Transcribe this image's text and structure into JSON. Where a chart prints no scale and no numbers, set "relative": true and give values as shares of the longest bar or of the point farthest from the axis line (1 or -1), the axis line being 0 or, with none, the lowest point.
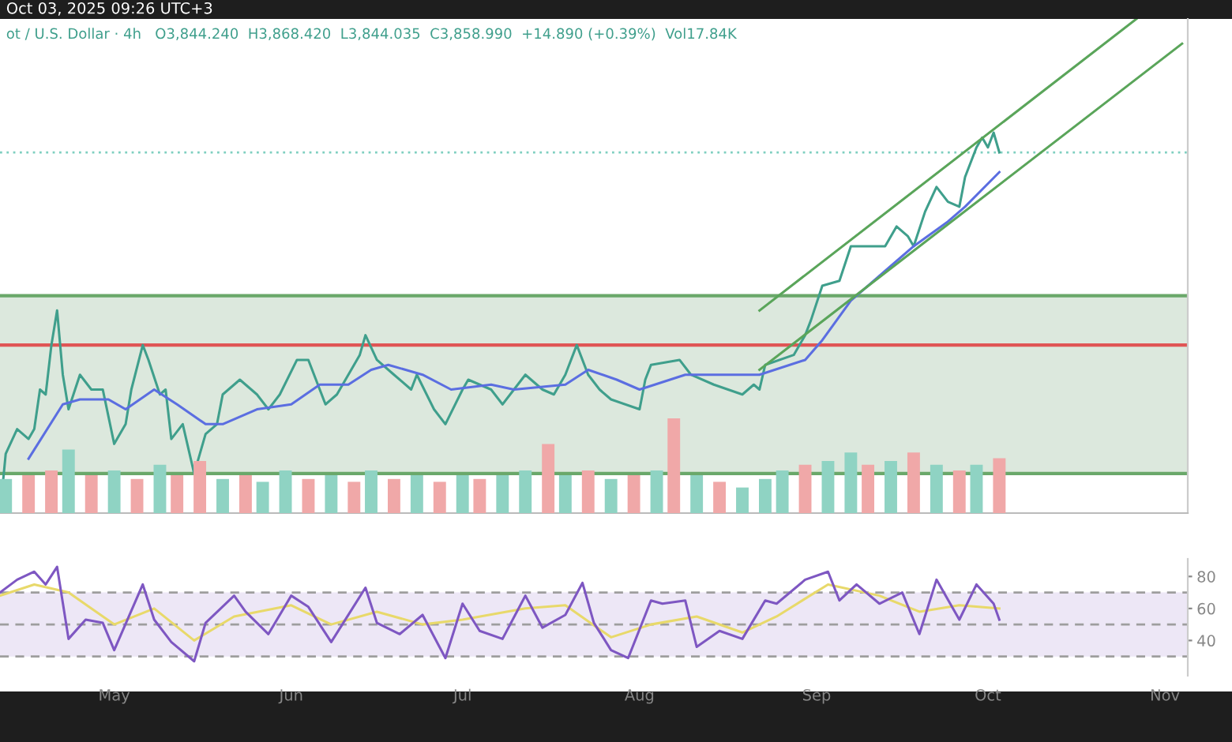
{
  "chart_data": [
    {
      "type": "line",
      "relative": true,
      "title": "Oct 03, 2025 09:26 UTC+3",
      "subtitle": "ot / U.S. Dollar · 4h   O3,844.240  H3,868.420  L3,844.035  C3,858.990  +14.890 (+0.39%)  Vol17.84K",
      "xlim": [
        "2025-04-11",
        "2025-11-05"
      ],
      "series": [
        {
          "color": "#3f9f8c",
          "x": [
            "2025-04-11",
            "2025-04-12",
            "2025-04-14",
            "2025-04-16",
            "2025-04-17",
            "2025-04-18",
            "2025-04-19",
            "2025-04-20",
            "2025-04-21",
            "2025-04-22",
            "2025-04-23",
            "2025-04-25",
            "2025-04-27",
            "2025-04-29",
            "2025-05-01",
            "2025-05-03",
            "2025-05-04",
            "2025-05-06",
            "2025-05-07",
            "2025-05-09",
            "2025-05-10",
            "2025-05-11",
            "2025-05-13",
            "2025-05-15",
            "2025-05-16",
            "2025-05-17",
            "2025-05-19",
            "2025-05-20",
            "2025-05-23",
            "2025-05-26",
            "2025-05-28",
            "2025-05-30",
            "2025-06-02",
            "2025-06-04",
            "2025-06-07",
            "2025-06-09",
            "2025-06-13",
            "2025-06-14",
            "2025-06-16",
            "2025-06-19",
            "2025-06-22",
            "2025-06-23",
            "2025-06-26",
            "2025-06-28",
            "2025-07-01",
            "2025-07-02",
            "2025-07-06",
            "2025-07-08",
            "2025-07-10",
            "2025-07-12",
            "2025-07-15",
            "2025-07-17",
            "2025-07-19",
            "2025-07-21",
            "2025-07-23",
            "2025-07-25",
            "2025-07-27",
            "2025-08-01",
            "2025-08-02",
            "2025-08-03",
            "2025-08-08",
            "2025-08-10",
            "2025-08-14",
            "2025-08-19",
            "2025-08-21",
            "2025-08-22",
            "2025-08-23",
            "2025-08-28",
            "2025-08-30",
            "2025-08-31",
            "2025-09-02",
            "2025-09-05",
            "2025-09-07",
            "2025-09-10",
            "2025-09-13",
            "2025-09-15",
            "2025-09-17",
            "2025-09-18",
            "2025-09-20",
            "2025-09-22",
            "2025-09-24",
            "2025-09-26",
            "2025-09-27",
            "2025-09-29",
            "2025-09-30",
            "2025-10-01",
            "2025-10-02",
            "2025-10-03"
          ],
          "values": [
            0,
            0.12,
            0.17,
            0.15,
            0.17,
            0.25,
            0.24,
            0.34,
            0.41,
            0.28,
            0.21,
            0.28,
            0.25,
            0.25,
            0.14,
            0.18,
            0.25,
            0.34,
            0.31,
            0.24,
            0.25,
            0.15,
            0.18,
            0.08,
            0.12,
            0.16,
            0.18,
            0.24,
            0.27,
            0.24,
            0.21,
            0.24,
            0.31,
            0.31,
            0.22,
            0.24,
            0.32,
            0.36,
            0.31,
            0.28,
            0.25,
            0.28,
            0.21,
            0.18,
            0.25,
            0.27,
            0.25,
            0.22,
            0.25,
            0.28,
            0.25,
            0.24,
            0.28,
            0.34,
            0.28,
            0.25,
            0.23,
            0.21,
            0.27,
            0.3,
            0.31,
            0.28,
            0.26,
            0.24,
            0.26,
            0.25,
            0.3,
            0.32,
            0.36,
            0.39,
            0.46,
            0.47,
            0.54,
            0.54,
            0.54,
            0.58,
            0.56,
            0.54,
            0.61,
            0.66,
            0.63,
            0.62,
            0.68,
            0.74,
            0.76,
            0.74,
            0.77,
            0.73
          ]
        },
        {
          "color": "#5b6ee1",
          "x": [
            "2025-04-16",
            "2025-04-22",
            "2025-04-25",
            "2025-04-30",
            "2025-05-03",
            "2025-05-08",
            "2025-05-12",
            "2025-05-17",
            "2025-05-20",
            "2025-05-26",
            "2025-06-01",
            "2025-06-06",
            "2025-06-11",
            "2025-06-15",
            "2025-06-18",
            "2025-06-24",
            "2025-06-29",
            "2025-07-06",
            "2025-07-10",
            "2025-07-19",
            "2025-07-23",
            "2025-07-28",
            "2025-08-01",
            "2025-08-09",
            "2025-08-22",
            "2025-08-30",
            "2025-09-02",
            "2025-09-07",
            "2025-09-13",
            "2025-09-18",
            "2025-09-24",
            "2025-09-27",
            "2025-10-03"
          ],
          "values": [
            0.11,
            0.22,
            0.23,
            0.23,
            0.21,
            0.25,
            0.22,
            0.18,
            0.18,
            0.21,
            0.22,
            0.26,
            0.26,
            0.29,
            0.3,
            0.28,
            0.25,
            0.26,
            0.25,
            0.26,
            0.29,
            0.27,
            0.25,
            0.28,
            0.28,
            0.31,
            0.35,
            0.43,
            0.49,
            0.54,
            0.59,
            0.62,
            0.69
          ]
        },
        {
          "color": "#5aa55a",
          "x": [
            "2025-08-22",
            "2025-10-27"
          ],
          "values": [
            0.41,
            1.0
          ]
        },
        {
          "color": "#5aa55a",
          "x": [
            "2025-08-22",
            "2025-11-04"
          ],
          "values": [
            0.29,
            0.95
          ]
        }
      ],
      "bands": [
        {
          "axis": "y",
          "from": 0.08,
          "to": 0.44,
          "color": "#dce8dd"
        }
      ],
      "ref_lines": [
        {
          "axis": "y",
          "value": 0.08,
          "color": "#6aa86a",
          "line_style": "solid"
        },
        {
          "axis": "y",
          "value": 0.44,
          "color": "#6aa86a",
          "line_style": "solid"
        },
        {
          "axis": "y",
          "value": 0.34,
          "color": "#e05555",
          "line_style": "solid"
        },
        {
          "axis": "y",
          "value": 0.73,
          "color": "#7fcfc0",
          "line_style": "dotted"
        }
      ]
    },
    {
      "type": "bar",
      "relative": true,
      "xlim": [
        "2025-04-11",
        "2025-11-05"
      ],
      "x": [
        "2025-04-12",
        "2025-04-16",
        "2025-04-20",
        "2025-04-23",
        "2025-04-27",
        "2025-05-01",
        "2025-05-05",
        "2025-05-09",
        "2025-05-12",
        "2025-05-16",
        "2025-05-20",
        "2025-05-24",
        "2025-05-27",
        "2025-05-31",
        "2025-06-04",
        "2025-06-08",
        "2025-06-12",
        "2025-06-15",
        "2025-06-19",
        "2025-06-23",
        "2025-06-27",
        "2025-07-01",
        "2025-07-04",
        "2025-07-08",
        "2025-07-12",
        "2025-07-16",
        "2025-07-19",
        "2025-07-23",
        "2025-07-27",
        "2025-07-31",
        "2025-08-04",
        "2025-08-07",
        "2025-08-11",
        "2025-08-15",
        "2025-08-19",
        "2025-08-23",
        "2025-08-26",
        "2025-08-30",
        "2025-09-03",
        "2025-09-07",
        "2025-09-10",
        "2025-09-14",
        "2025-09-18",
        "2025-09-22",
        "2025-09-26",
        "2025-09-29",
        "2025-10-03"
      ],
      "values": [
        0.36,
        0.4,
        0.45,
        0.67,
        0.4,
        0.45,
        0.36,
        0.51,
        0.4,
        0.55,
        0.36,
        0.4,
        0.33,
        0.45,
        0.36,
        0.4,
        0.33,
        0.45,
        0.36,
        0.4,
        0.33,
        0.4,
        0.36,
        0.4,
        0.45,
        0.73,
        0.4,
        0.45,
        0.36,
        0.4,
        0.45,
        1,
        0.4,
        0.33,
        0.27,
        0.36,
        0.45,
        0.51,
        0.55,
        0.64,
        0.51,
        0.55,
        0.64,
        0.51,
        0.45,
        0.51,
        0.58
      ],
      "colors": [
        "#8fd3c3",
        "#f0a8a8",
        "#f0a8a8",
        "#8fd3c3",
        "#f0a8a8",
        "#8fd3c3",
        "#f0a8a8",
        "#8fd3c3",
        "#f0a8a8",
        "#f0a8a8",
        "#8fd3c3",
        "#f0a8a8",
        "#8fd3c3",
        "#8fd3c3",
        "#f0a8a8",
        "#8fd3c3",
        "#f0a8a8",
        "#8fd3c3",
        "#f0a8a8",
        "#8fd3c3",
        "#f0a8a8",
        "#8fd3c3",
        "#f0a8a8",
        "#8fd3c3",
        "#8fd3c3",
        "#f0a8a8",
        "#8fd3c3",
        "#f0a8a8",
        "#8fd3c3",
        "#f0a8a8",
        "#8fd3c3",
        "#f0a8a8",
        "#8fd3c3",
        "#f0a8a8",
        "#8fd3c3",
        "#8fd3c3",
        "#8fd3c3",
        "#f0a8a8",
        "#8fd3c3",
        "#8fd3c3",
        "#f0a8a8",
        "#8fd3c3",
        "#f0a8a8",
        "#8fd3c3",
        "#f0a8a8",
        "#8fd3c3",
        "#f0a8a8"
      ]
    },
    {
      "type": "line",
      "xlim": [
        "2025-04-11",
        "2025-11-05"
      ],
      "ylim": [
        18,
        91
      ],
      "yticks": [
        40,
        60,
        80
      ],
      "xticks": [
        {
          "value": "2025-05-01",
          "label": "May"
        },
        {
          "value": "2025-06-01",
          "label": "Jun"
        },
        {
          "value": "2025-07-01",
          "label": "Jul"
        },
        {
          "value": "2025-08-01",
          "label": "Aug"
        },
        {
          "value": "2025-09-01",
          "label": "Sep"
        },
        {
          "value": "2025-10-01",
          "label": "Oct"
        },
        {
          "value": "2025-11-01",
          "label": "Nov"
        }
      ],
      "series": [
        {
          "color": "#e8d96a",
          "x": [
            "2025-04-11",
            "2025-04-17",
            "2025-04-23",
            "2025-05-01",
            "2025-05-08",
            "2025-05-15",
            "2025-05-22",
            "2025-06-01",
            "2025-06-08",
            "2025-06-16",
            "2025-06-24",
            "2025-07-01",
            "2025-07-12",
            "2025-07-19",
            "2025-07-27",
            "2025-08-03",
            "2025-08-11",
            "2025-08-19",
            "2025-08-25",
            "2025-09-03",
            "2025-09-12",
            "2025-09-19",
            "2025-09-26",
            "2025-10-03"
          ],
          "values": [
            68,
            75,
            70,
            50,
            60,
            40,
            55,
            62,
            50,
            58,
            50,
            53,
            60,
            62,
            42,
            50,
            55,
            45,
            55,
            75,
            68,
            58,
            62,
            60
          ]
        },
        {
          "color": "#7e57c2",
          "x": [
            "2025-04-11",
            "2025-04-14",
            "2025-04-17",
            "2025-04-19",
            "2025-04-21",
            "2025-04-23",
            "2025-04-26",
            "2025-04-29",
            "2025-05-01",
            "2025-05-06",
            "2025-05-08",
            "2025-05-11",
            "2025-05-15",
            "2025-05-17",
            "2025-05-22",
            "2025-05-24",
            "2025-05-28",
            "2025-06-01",
            "2025-06-04",
            "2025-06-08",
            "2025-06-14",
            "2025-06-16",
            "2025-06-20",
            "2025-06-24",
            "2025-06-28",
            "2025-07-01",
            "2025-07-04",
            "2025-07-08",
            "2025-07-12",
            "2025-07-15",
            "2025-07-19",
            "2025-07-22",
            "2025-07-24",
            "2025-07-27",
            "2025-07-30",
            "2025-08-03",
            "2025-08-05",
            "2025-08-09",
            "2025-08-11",
            "2025-08-15",
            "2025-08-19",
            "2025-08-23",
            "2025-08-25",
            "2025-08-30",
            "2025-09-03",
            "2025-09-05",
            "2025-09-08",
            "2025-09-12",
            "2025-09-16",
            "2025-09-19",
            "2025-09-22",
            "2025-09-26",
            "2025-09-29",
            "2025-10-02",
            "2025-10-03"
          ],
          "values": [
            70,
            78,
            83,
            75,
            86,
            41,
            53,
            51,
            34,
            75,
            53,
            39,
            27,
            51,
            68,
            58,
            44,
            68,
            61,
            39,
            73,
            51,
            44,
            56,
            29,
            63,
            46,
            41,
            68,
            48,
            56,
            76,
            51,
            34,
            29,
            65,
            63,
            65,
            36,
            46,
            41,
            65,
            63,
            78,
            83,
            65,
            75,
            63,
            70,
            44,
            78,
            53,
            75,
            63,
            53
          ]
        }
      ],
      "bands": [
        {
          "axis": "y",
          "from": 30,
          "to": 70,
          "color": "#ede7f6"
        }
      ],
      "ref_lines": [
        {
          "axis": "y",
          "value": 70,
          "color": "#9e9e9e",
          "line_style": "dashed"
        },
        {
          "axis": "y",
          "value": 50,
          "color": "#9e9e9e",
          "line_style": "dashed"
        },
        {
          "axis": "y",
          "value": 30,
          "color": "#9e9e9e",
          "line_style": "dashed"
        }
      ]
    }
  ]
}
